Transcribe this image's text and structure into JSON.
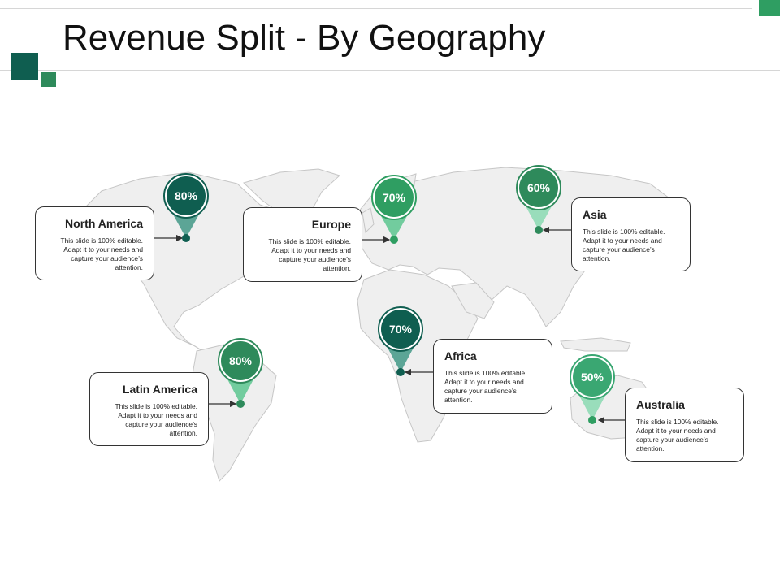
{
  "title": "Revenue Split - By Geography",
  "colors": {
    "dark": "#0f5e50",
    "mid": "#2f9e62",
    "light": "#63c79a",
    "map": "#efefef"
  },
  "regions": [
    {
      "id": "north-america",
      "name": "North America",
      "percent": "80%",
      "desc": "This slide is 100% editable. Adapt it to your needs and capture your audience’s attention."
    },
    {
      "id": "europe",
      "name": "Europe",
      "percent": "70%",
      "desc": "This slide is 100% editable. Adapt it to your needs and capture your audience’s attention."
    },
    {
      "id": "asia",
      "name": "Asia",
      "percent": "60%",
      "desc": "This slide is 100% editable. Adapt it to your needs and capture your audience’s attention."
    },
    {
      "id": "africa",
      "name": "Africa",
      "percent": "70%",
      "desc": "This slide is 100% editable. Adapt it to your needs and capture your audience’s attention."
    },
    {
      "id": "latin-america",
      "name": "Latin America",
      "percent": "80%",
      "desc": "This slide is 100% editable. Adapt it to your needs and capture your audience’s attention."
    },
    {
      "id": "australia",
      "name": "Australia",
      "percent": "50%",
      "desc": "This slide is 100% editable. Adapt it to your needs and capture your audience’s attention."
    }
  ]
}
